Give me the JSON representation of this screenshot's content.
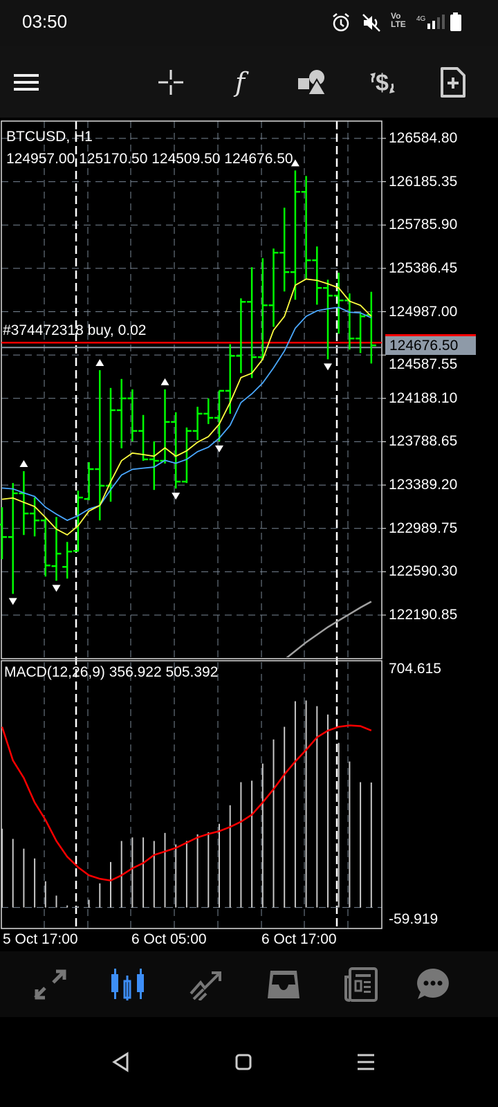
{
  "status_bar": {
    "time": "03:50",
    "icons": [
      "alarm-icon",
      "mute-icon",
      "volte-icon",
      "4g-signal-icon",
      "battery-icon"
    ],
    "volte": "Vo LTE",
    "network": "4G"
  },
  "toolbar": {
    "icons": [
      "menu-icon",
      "crosshair-icon",
      "indicators-icon",
      "objects-icon",
      "trade-icon",
      "new-order-icon"
    ],
    "indicator_glyph": "f"
  },
  "chart": {
    "symbol_label": "BTCUSD, H1",
    "ohlc_label": "124957.00 125170.50 124509.50 124676.50",
    "position_label": "#374472318 buy, 0.02",
    "current_price": "124676.50",
    "macd_label": "MACD(12,26,9) 356.922 505.392",
    "macd_axis_top": "704.615",
    "macd_axis_bottom": "-59.919",
    "time_labels": [
      "5 Oct 17:00",
      "6 Oct 05:00",
      "6 Oct 17:00"
    ],
    "colors": {
      "bars": "#00ff00",
      "fast_ma": "#ffff40",
      "slow_ma": "#4aa8ff",
      "long_ma": "#a0a0a0",
      "signal": "#ff0000",
      "histogram": "#c8c8c8",
      "position_line": "#ff0000",
      "grid": "#7a8796",
      "active_nav": "#3d8ef7"
    }
  },
  "chart_data": [
    {
      "type": "ohlc",
      "title": "BTCUSD, H1",
      "ylim": [
        121789,
        126744
      ],
      "y_ticks": [
        "126584.80",
        "126185.35",
        "125785.90",
        "125386.45",
        "124987.00",
        "124587.55",
        "124188.10",
        "123788.65",
        "123389.20",
        "122989.75",
        "122590.30",
        "122190.85"
      ],
      "x_ticks": [
        "5 Oct 17:00",
        "6 Oct 05:00",
        "6 Oct 17:00"
      ],
      "grid": true,
      "ohlc": [
        [
          123025,
          123185,
          122706,
          122910
        ],
        [
          122910,
          123408,
          122386,
          123313
        ],
        [
          123313,
          123517,
          122929,
          123127
        ],
        [
          123127,
          123274,
          122916,
          123063
        ],
        [
          123063,
          123089,
          122546,
          122648
        ],
        [
          122642,
          123095,
          122507,
          122757
        ],
        [
          122635,
          122865,
          122527,
          122776
        ],
        [
          122782,
          123338,
          122776,
          123274
        ],
        [
          123261,
          123600,
          123249,
          123536
        ],
        [
          123536,
          124448,
          123064,
          123383
        ],
        [
          123383,
          124284,
          123236,
          124079
        ],
        [
          124079,
          124367,
          123728,
          124188
        ],
        [
          124188,
          124271,
          123792,
          123888
        ],
        [
          123888,
          124035,
          123613,
          123626
        ],
        [
          123626,
          123792,
          123344,
          123613
        ],
        [
          123613,
          124271,
          123587,
          123971
        ],
        [
          123971,
          124060,
          123357,
          123421
        ],
        [
          123421,
          123920,
          123408,
          123888
        ],
        [
          123888,
          124111,
          123805,
          124047
        ],
        [
          124047,
          124188,
          123952,
          124009
        ],
        [
          124009,
          124260,
          123792,
          124258
        ],
        [
          124258,
          124687,
          124046,
          124580
        ],
        [
          124580,
          125110,
          124421,
          125078
        ],
        [
          125078,
          125397,
          124376,
          124568
        ],
        [
          124568,
          125480,
          124540,
          125046
        ],
        [
          125046,
          125569,
          124848,
          125531
        ],
        [
          125531,
          125945,
          125174,
          125352
        ],
        [
          125352,
          126289,
          125097,
          126092
        ],
        [
          126092,
          126238,
          125282,
          125461
        ],
        [
          125461,
          125588,
          125052,
          125206
        ],
        [
          125206,
          125282,
          124548,
          125135
        ],
        [
          125135,
          125346,
          124784,
          125091
        ],
        [
          125091,
          125155,
          124638,
          124740
        ],
        [
          124740,
          124982,
          124606,
          124944
        ],
        [
          124957,
          125170.5,
          124509.5,
          124676.5
        ]
      ],
      "fast_ma": [
        123258,
        123270,
        123230,
        123191,
        123090,
        122983,
        122930,
        123014,
        123149,
        123201,
        123420,
        123614,
        123684,
        123670,
        123655,
        123732,
        123655,
        123705,
        123784,
        123836,
        123951,
        124150,
        124380,
        124420,
        124548,
        124817,
        124944,
        125231,
        125288,
        125276,
        125244,
        125206,
        125084,
        125046,
        124944
      ],
      "slow_ma": [
        123362,
        123354,
        123317,
        123284,
        123185,
        123121,
        123064,
        123107,
        123168,
        123201,
        123347,
        123482,
        123534,
        123545,
        123555,
        123617,
        123590,
        123626,
        123697,
        123738,
        123822,
        123940,
        124150,
        124230,
        124330,
        124470,
        124625,
        124835,
        124944,
        124995,
        125014,
        125027,
        124982,
        124976,
        124931
      ],
      "long_ma": [
        null,
        null,
        null,
        null,
        null,
        null,
        null,
        null,
        null,
        null,
        null,
        null,
        null,
        null,
        null,
        null,
        null,
        null,
        null,
        null,
        null,
        null,
        null,
        null,
        null,
        121720,
        121780,
        121860,
        121940,
        122010,
        122080,
        122140,
        122200,
        122260,
        122315
      ],
      "fractals_up": [
        2,
        9,
        15,
        27
      ],
      "fractals_down": [
        1,
        5,
        16,
        20,
        30
      ],
      "position_price": 124676.5
    },
    {
      "type": "bar",
      "title": "MACD(12,26,9) 356.922 505.392",
      "ylim": [
        -59.919,
        704.615
      ],
      "histogram": [
        225,
        196,
        168,
        140,
        75,
        34,
        6,
        3,
        22,
        69,
        130,
        190,
        200,
        200,
        190,
        213,
        180,
        190,
        209,
        215,
        239,
        292,
        358,
        362,
        411,
        480,
        516,
        589,
        591,
        575,
        551,
        470,
        417,
        358,
        356.922
      ],
      "signal": [
        516,
        420,
        370,
        300,
        250,
        190,
        145,
        115,
        92,
        82,
        77,
        92,
        112,
        127,
        150,
        160,
        170,
        185,
        200,
        210,
        218,
        230,
        245,
        265,
        300,
        338,
        380,
        417,
        450,
        486,
        505,
        516,
        520,
        518,
        505.392
      ]
    }
  ],
  "bottom_nav": {
    "items": [
      "quotes-icon",
      "chart-icon",
      "trade-icon",
      "history-icon",
      "news-icon",
      "chat-icon"
    ],
    "active": 1
  }
}
